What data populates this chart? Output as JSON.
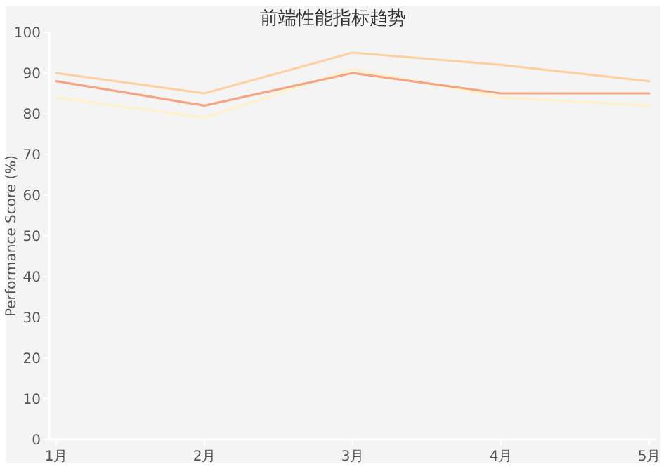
{
  "chart_data": {
    "type": "line",
    "title": "前端性能指标趋势",
    "ylabel": "Performance Score (%)",
    "categories": [
      "1月",
      "2月",
      "3月",
      "4月",
      "5月"
    ],
    "series": [
      {
        "color": "#f4a582",
        "values": [
          88,
          82,
          90,
          85,
          85
        ]
      },
      {
        "color": "#fdd0a2",
        "values": [
          90,
          85,
          95,
          92,
          88
        ]
      },
      {
        "color": "#fff1c9",
        "values": [
          84,
          79,
          91,
          84,
          82
        ]
      }
    ],
    "ylim": [
      0,
      100
    ],
    "yticks": [
      0,
      10,
      20,
      30,
      40,
      50,
      60,
      70,
      80,
      90,
      100
    ],
    "grid": false
  }
}
